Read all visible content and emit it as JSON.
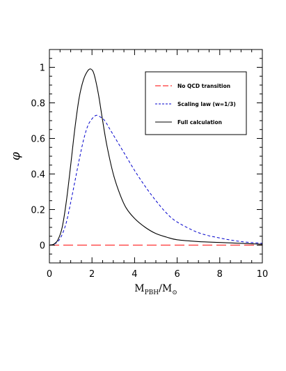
{
  "chart_data": {
    "type": "line",
    "title": "",
    "xlabel": "M_PBH/M_⊙",
    "xlabel_parts": {
      "main": "M",
      "sub": "PBH",
      "sep": "/M",
      "sub2": "⊙"
    },
    "ylabel": "φ",
    "xlim": [
      0,
      10
    ],
    "ylim": [
      -0.1,
      1.1
    ],
    "xticks": [
      0,
      2,
      4,
      6,
      8,
      10
    ],
    "yticks": [
      0,
      0.2,
      0.4,
      0.6,
      0.8,
      1
    ],
    "xtick_labels": [
      "0",
      "2",
      "4",
      "6",
      "8",
      "10"
    ],
    "ytick_labels": [
      "0",
      "0.2",
      "0.4",
      "0.6",
      "0.8",
      "1"
    ],
    "grid": false,
    "legend_position": "top-right",
    "series": [
      {
        "name": "No QCD transition",
        "color": "#ff3333",
        "style": "long-dash",
        "x": [
          0,
          1,
          2,
          3,
          4,
          5,
          6,
          7,
          8,
          9,
          10
        ],
        "y": [
          0,
          0,
          0,
          0,
          0,
          0,
          0,
          0,
          0,
          0,
          0
        ]
      },
      {
        "name": "Scaling law (w=1/3)",
        "color": "#0000cc",
        "style": "short-dash",
        "x": [
          0,
          0.2,
          0.4,
          0.6,
          0.8,
          1.0,
          1.2,
          1.4,
          1.6,
          1.8,
          2.0,
          2.2,
          2.4,
          2.6,
          2.8,
          3.0,
          3.5,
          4.0,
          4.5,
          5.0,
          5.5,
          6.0,
          7.0,
          8.0,
          9.0,
          10.0
        ],
        "y": [
          0,
          0.005,
          0.02,
          0.06,
          0.13,
          0.24,
          0.36,
          0.48,
          0.59,
          0.67,
          0.71,
          0.73,
          0.72,
          0.7,
          0.66,
          0.62,
          0.52,
          0.42,
          0.33,
          0.25,
          0.18,
          0.13,
          0.07,
          0.04,
          0.02,
          0.01
        ]
      },
      {
        "name": "Full calculation",
        "color": "#000000",
        "style": "solid",
        "x": [
          0,
          0.2,
          0.4,
          0.6,
          0.8,
          1.0,
          1.2,
          1.4,
          1.6,
          1.8,
          1.95,
          2.1,
          2.3,
          2.5,
          2.7,
          3.0,
          3.3,
          3.6,
          4.0,
          4.5,
          5.0,
          5.5,
          6.0,
          7.0,
          8.0,
          9.0,
          10.0
        ],
        "y": [
          0,
          0.005,
          0.03,
          0.1,
          0.25,
          0.45,
          0.66,
          0.83,
          0.93,
          0.98,
          0.99,
          0.96,
          0.85,
          0.7,
          0.56,
          0.4,
          0.29,
          0.21,
          0.15,
          0.1,
          0.065,
          0.045,
          0.03,
          0.02,
          0.015,
          0.01,
          0.005
        ]
      }
    ]
  }
}
